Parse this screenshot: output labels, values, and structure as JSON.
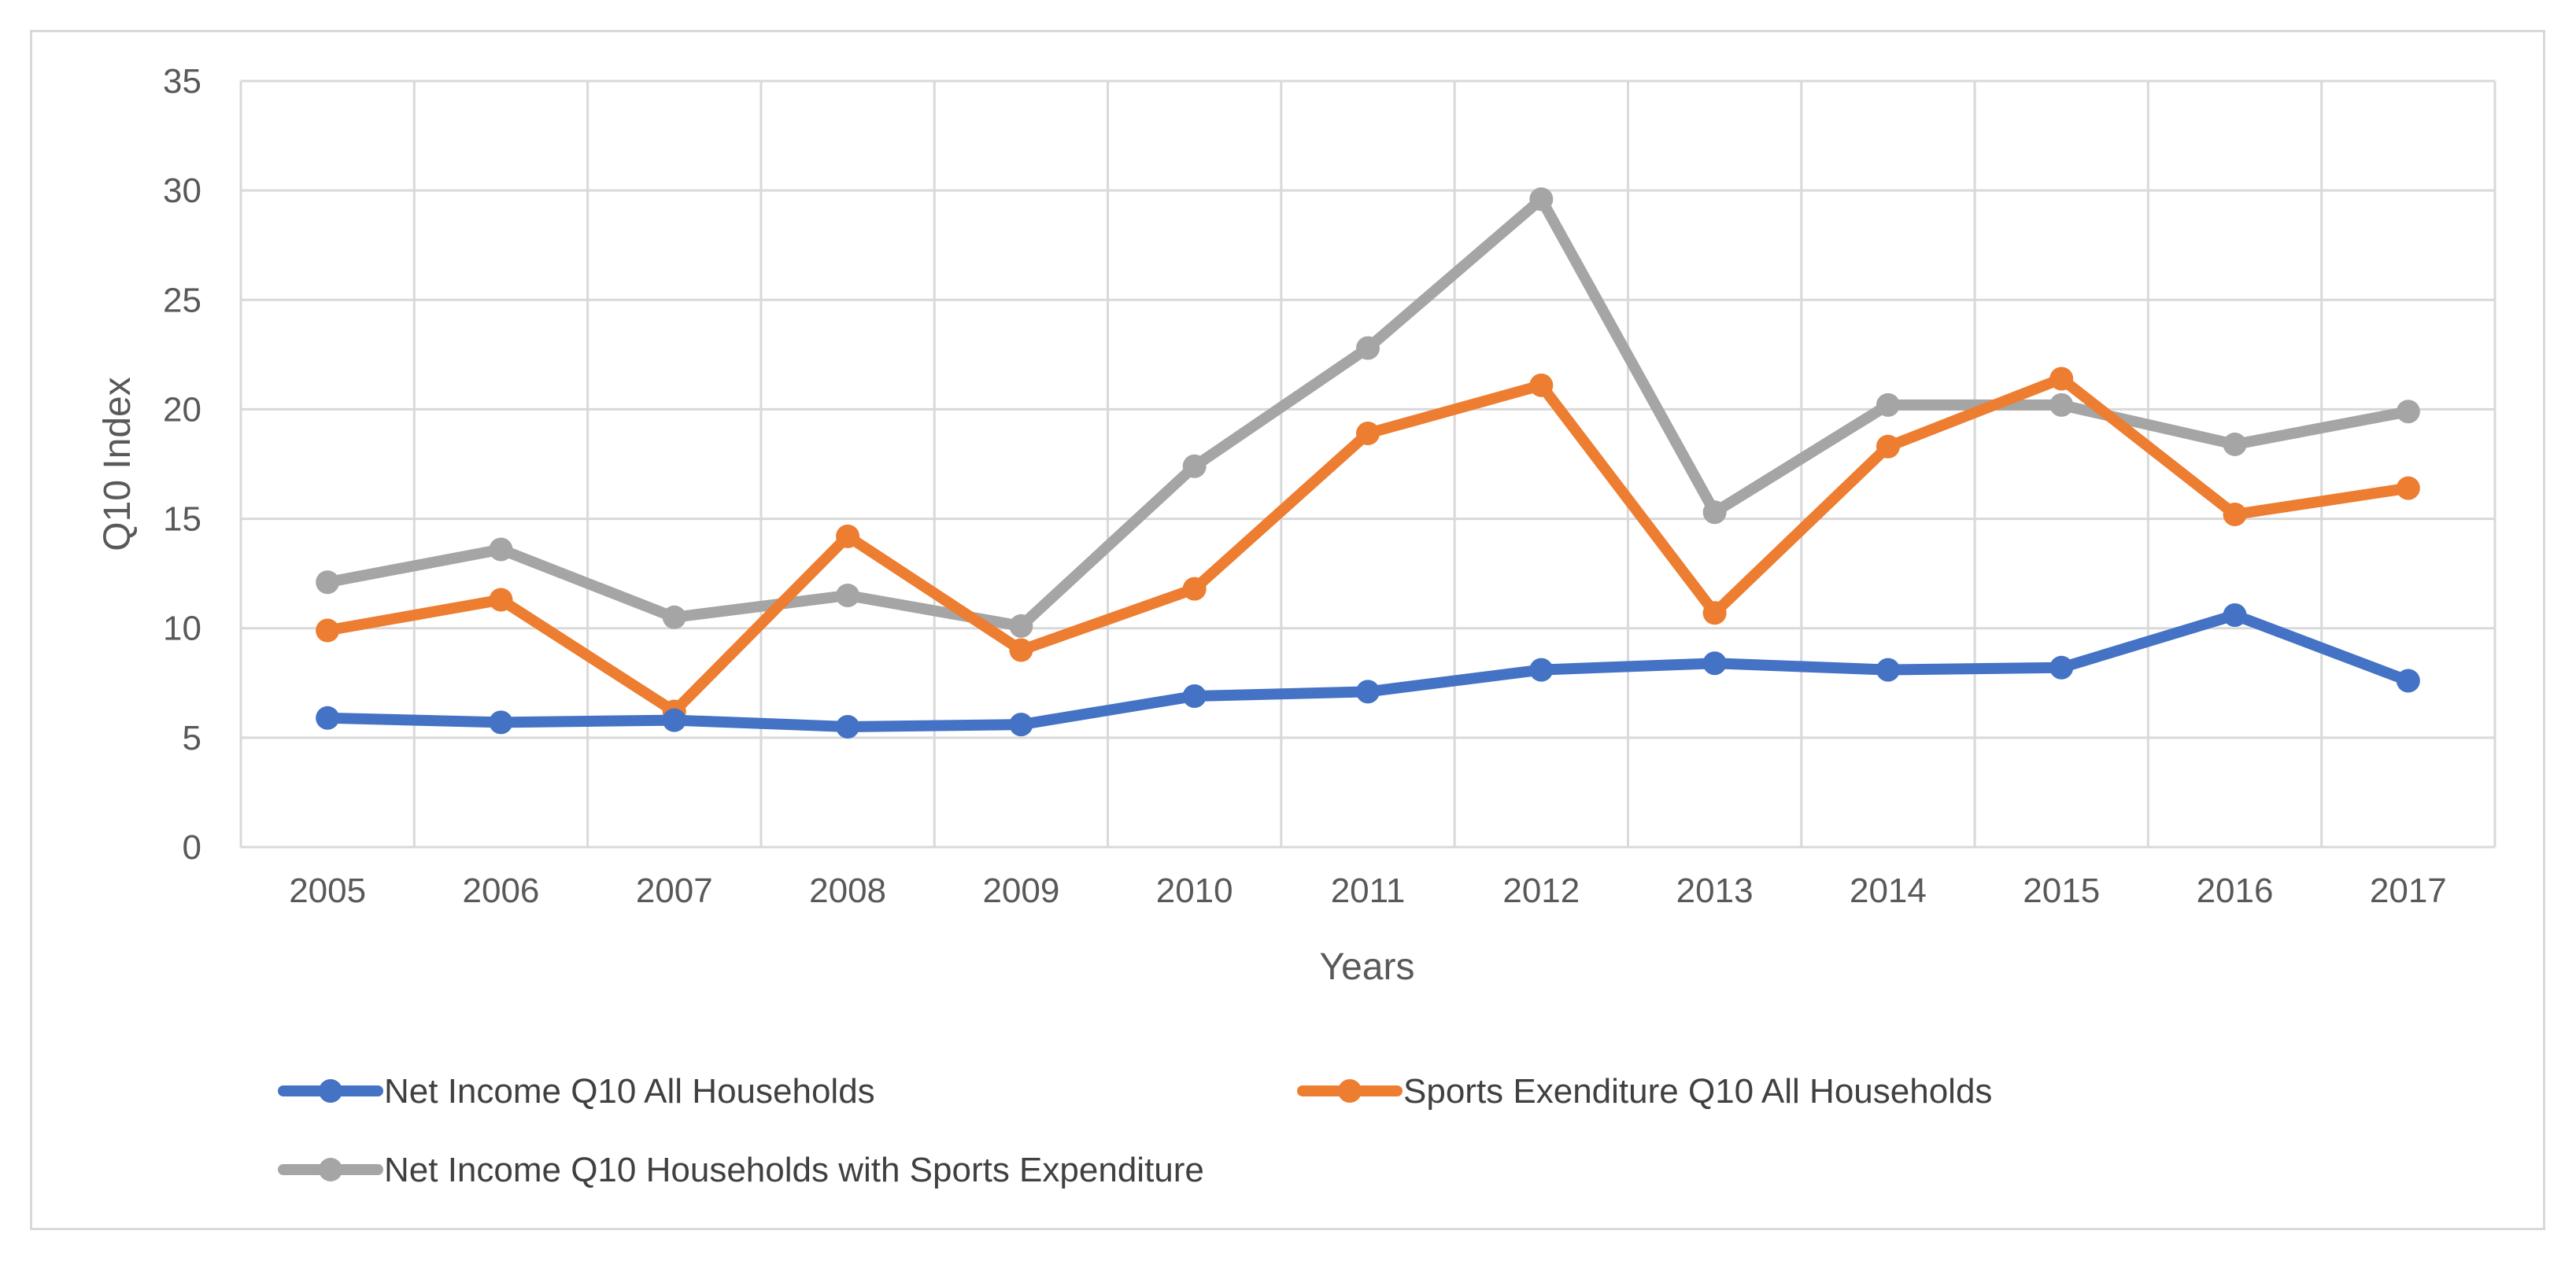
{
  "chart_data": {
    "type": "line",
    "title": "",
    "xlabel": "Years",
    "ylabel": "Q10 Index",
    "ylim": [
      0,
      35
    ],
    "yticks": [
      "0",
      "5",
      "10",
      "15",
      "20",
      "25",
      "30",
      "35"
    ],
    "grid": true,
    "legend_position": "bottom",
    "categories": [
      "2005",
      "2006",
      "2007",
      "2008",
      "2009",
      "2010",
      "2011",
      "2012",
      "2013",
      "2014",
      "2015",
      "2016",
      "2017"
    ],
    "series": [
      {
        "name": "Net Income Q10 All Households",
        "color": "#4472c4",
        "values": [
          5.9,
          5.7,
          5.8,
          5.5,
          5.6,
          6.9,
          7.1,
          8.1,
          8.4,
          8.1,
          8.2,
          10.6,
          7.6
        ]
      },
      {
        "name": "Sports Exenditure Q10 All Households",
        "color": "#ed7d31",
        "values": [
          9.9,
          11.3,
          6.2,
          14.2,
          9.0,
          11.8,
          18.9,
          21.1,
          10.7,
          18.3,
          21.4,
          15.2,
          16.4
        ]
      },
      {
        "name": "Net Income Q10 Households with Sports Expenditure",
        "color": "#a5a5a5",
        "values": [
          12.1,
          13.6,
          10.5,
          11.5,
          10.1,
          17.4,
          22.8,
          29.6,
          15.3,
          20.2,
          20.2,
          18.4,
          19.9
        ]
      }
    ]
  }
}
